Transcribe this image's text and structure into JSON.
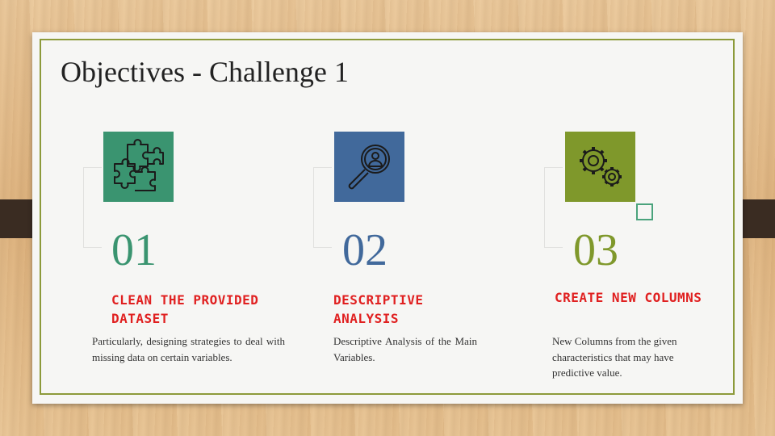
{
  "slide": {
    "title": "Objectives - Challenge 1"
  },
  "colors": {
    "green": "#3a9470",
    "blue": "#41699b",
    "olive": "#7f982b",
    "heading_red": "#e02020",
    "frame": "#8c9a3a"
  },
  "objectives": [
    {
      "number": "01",
      "heading_line1": "CLEAN THE PROVIDED",
      "heading_line2": "DATASET",
      "description": "Particularly, designing strategies to deal with missing data on certain variables.",
      "icon": "puzzle-icon"
    },
    {
      "number": "02",
      "heading_line1": "DESCRIPTIVE",
      "heading_line2": "ANALYSIS",
      "description": "Descriptive Analysis of the Main Variables.",
      "icon": "magnifier-person-icon"
    },
    {
      "number": "03",
      "heading_line1": "CREATE NEW COLUMNS",
      "heading_line2": "",
      "description_line1": "New Columns from the given",
      "description_line2": "characteristics that may have",
      "description_line3": "predictive value.",
      "icon": "gears-icon"
    }
  ]
}
